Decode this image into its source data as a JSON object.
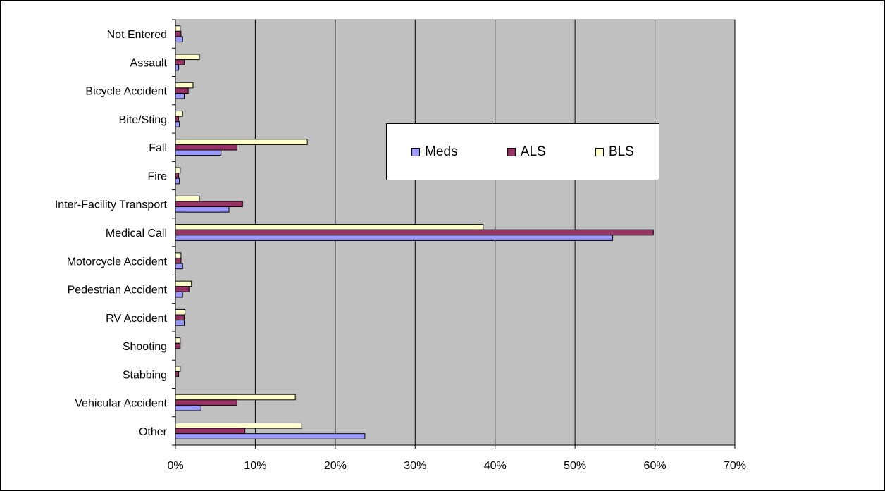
{
  "chart_data": {
    "type": "bar",
    "orientation": "horizontal",
    "categories": [
      "Not Entered",
      "Assault",
      "Bicycle Accident",
      "Bite/Sting",
      "Fall",
      "Fire",
      "Inter-Facility Transport",
      "Medical Call",
      "Motorcycle Accident",
      "Pedestrian Accident",
      "RV Accident",
      "Shooting",
      "Stabbing",
      "Vehicular Accident",
      "Other"
    ],
    "series": [
      {
        "name": "Meds",
        "color": "#9999ff",
        "values": [
          0.9,
          0.4,
          1.1,
          0.5,
          5.7,
          0.5,
          6.7,
          54.7,
          0.9,
          0.9,
          1.1,
          0.0,
          0.0,
          3.2,
          23.7
        ]
      },
      {
        "name": "ALS",
        "color": "#993366",
        "values": [
          0.7,
          1.1,
          1.6,
          0.4,
          7.7,
          0.4,
          8.4,
          59.8,
          0.7,
          1.7,
          1.1,
          0.6,
          0.4,
          7.7,
          8.7
        ]
      },
      {
        "name": "BLS",
        "color": "#ffffcc",
        "values": [
          0.6,
          3.0,
          2.2,
          0.9,
          16.5,
          0.6,
          3.0,
          38.5,
          0.7,
          2.0,
          1.2,
          0.6,
          0.6,
          15.0,
          15.8
        ]
      }
    ],
    "xticks": [
      "0%",
      "10%",
      "20%",
      "30%",
      "40%",
      "50%",
      "60%",
      "70%"
    ],
    "xlim": [
      0,
      70
    ],
    "unit": "%",
    "grid": true,
    "plot_background": "#c0c0c0",
    "legend_position": "inside-right",
    "title": "",
    "xlabel": "",
    "ylabel": ""
  }
}
